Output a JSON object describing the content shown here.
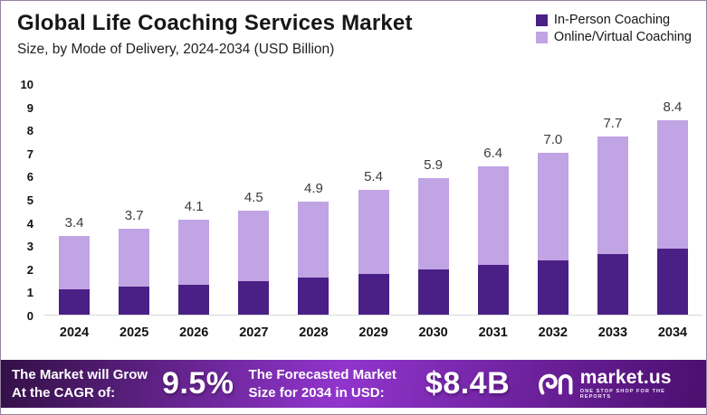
{
  "header": {
    "title": "Global Life Coaching Services Market",
    "subtitle": "Size, by Mode of Delivery, 2024-2034 (USD Billion)"
  },
  "legend": [
    {
      "label": "In-Person Coaching",
      "color": "#4a2086"
    },
    {
      "label": "Online/Virtual Coaching",
      "color": "#c0a4e4"
    }
  ],
  "chart_data": {
    "type": "bar",
    "stacked": true,
    "title": "Global Life Coaching Services Market",
    "subtitle": "Size, by Mode of Delivery, 2024-2034 (USD Billion)",
    "unit": "USD Billion",
    "categories": [
      "2024",
      "2025",
      "2026",
      "2027",
      "2028",
      "2029",
      "2030",
      "2031",
      "2032",
      "2033",
      "2034"
    ],
    "series": [
      {
        "name": "In-Person Coaching",
        "color": "#4a2086",
        "values": [
          1.1,
          1.2,
          1.3,
          1.45,
          1.6,
          1.75,
          1.95,
          2.15,
          2.35,
          2.6,
          2.85
        ]
      },
      {
        "name": "Online/Virtual Coaching",
        "color": "#c0a4e4",
        "values": [
          2.3,
          2.5,
          2.8,
          3.05,
          3.3,
          3.65,
          3.95,
          4.25,
          4.65,
          5.1,
          5.55
        ]
      }
    ],
    "totals": [
      3.4,
      3.7,
      4.1,
      4.5,
      4.9,
      5.4,
      5.9,
      6.4,
      7.0,
      7.7,
      8.4
    ],
    "total_labels": [
      "3.4",
      "3.7",
      "4.1",
      "4.5",
      "4.9",
      "5.4",
      "5.9",
      "6.4",
      "7.0",
      "7.7",
      "8.4"
    ],
    "ylim": [
      0,
      10
    ],
    "yticks": [
      0,
      1,
      2,
      3,
      4,
      5,
      6,
      7,
      8,
      9,
      10
    ],
    "grid": false,
    "legend_position": "top-right"
  },
  "banner": {
    "gradient": [
      "#331046",
      "#9135cd",
      "#4b0f6e"
    ],
    "cagr_label_line1": "The Market will Grow",
    "cagr_label_line2": "At the CAGR of:",
    "cagr_value": "9.5%",
    "forecast_label_line1": "The Forecasted Market",
    "forecast_label_line2": "Size for 2034 in USD:",
    "forecast_value": "$8.4B",
    "logo_name": "market.us",
    "logo_tagline": "ONE STOP SHOP FOR THE REPORTS"
  }
}
